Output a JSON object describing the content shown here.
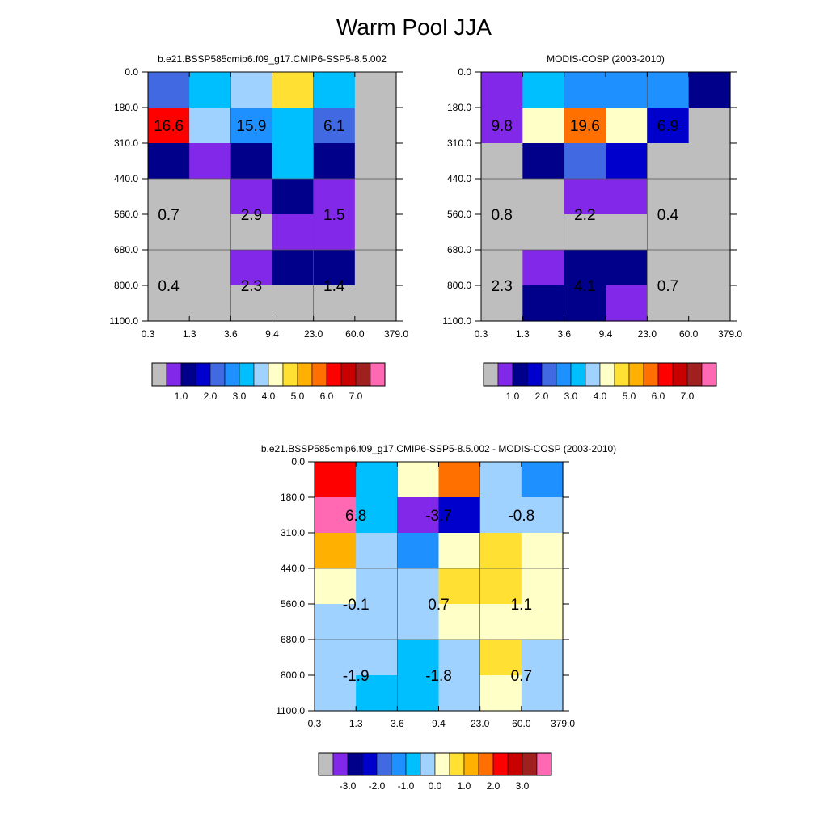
{
  "page": {
    "title": "Warm Pool JJA"
  },
  "chart_data": [
    {
      "type": "heatmap",
      "title": "b.e21.BSSP585cmip6.f09_g17.CMIP6-SSP5-8.5.002",
      "x_ticks": [
        "0.3",
        "1.3",
        "3.6",
        "9.4",
        "23.0",
        "60.0",
        "379.0"
      ],
      "y_ticks": [
        "0.0",
        "180.0",
        "310.0",
        "440.0",
        "560.0",
        "680.0",
        "800.0",
        "1100.0"
      ],
      "cells": [
        [
          4,
          6,
          7,
          9,
          6,
          0
        ],
        [
          12,
          7,
          5,
          6,
          4,
          0
        ],
        [
          2,
          1,
          2,
          6,
          2,
          0
        ],
        [
          0,
          0,
          1,
          2,
          1,
          0
        ],
        [
          0,
          0,
          0,
          1,
          1,
          0
        ],
        [
          0,
          0,
          1,
          2,
          2,
          0
        ],
        [
          0,
          0,
          0,
          0,
          0,
          0
        ]
      ],
      "labels": [
        {
          "text": "16.6",
          "col": 0.5,
          "row": 1.5
        },
        {
          "text": "15.9",
          "col": 2.5,
          "row": 1.5
        },
        {
          "text": "6.1",
          "col": 4.5,
          "row": 1.5
        },
        {
          "text": "0.7",
          "col": 0.5,
          "row": 4.0
        },
        {
          "text": "2.9",
          "col": 2.5,
          "row": 4.0
        },
        {
          "text": "1.5",
          "col": 4.5,
          "row": 4.0
        },
        {
          "text": "0.4",
          "col": 0.5,
          "row": 6.0
        },
        {
          "text": "2.3",
          "col": 2.5,
          "row": 6.0
        },
        {
          "text": "1.4",
          "col": 4.5,
          "row": 6.0
        }
      ],
      "colorbar": {
        "colors": [
          "#bebebe",
          "#8228e8",
          "#00008b",
          "#0000cd",
          "#4169e1",
          "#1e90ff",
          "#00bfff",
          "#a0d2ff",
          "#ffffc8",
          "#ffe033",
          "#ffb000",
          "#ff7000",
          "#ff0000",
          "#c80000",
          "#a02020",
          "#ff69b4"
        ],
        "tick_labels": [
          "1.0",
          "2.0",
          "3.0",
          "4.0",
          "5.0",
          "6.0",
          "7.0"
        ],
        "tick_after_box": [
          2,
          4,
          6,
          8,
          10,
          12,
          14
        ]
      }
    },
    {
      "type": "heatmap",
      "title": "MODIS-COSP (2003-2010)",
      "x_ticks": [
        "0.3",
        "1.3",
        "3.6",
        "9.4",
        "23.0",
        "60.0",
        "379.0"
      ],
      "y_ticks": [
        "0.0",
        "180.0",
        "310.0",
        "440.0",
        "560.0",
        "680.0",
        "800.0",
        "1100.0"
      ],
      "cells": [
        [
          1,
          6,
          5,
          5,
          5,
          2
        ],
        [
          1,
          8,
          11,
          8,
          3,
          0
        ],
        [
          0,
          2,
          4,
          3,
          0,
          0
        ],
        [
          0,
          0,
          1,
          1,
          0,
          0
        ],
        [
          0,
          0,
          0,
          0,
          0,
          0
        ],
        [
          0,
          1,
          2,
          2,
          0,
          0
        ],
        [
          0,
          2,
          2,
          1,
          0,
          0
        ]
      ],
      "labels": [
        {
          "text": "9.8",
          "col": 0.5,
          "row": 1.5
        },
        {
          "text": "19.6",
          "col": 2.5,
          "row": 1.5
        },
        {
          "text": "6.9",
          "col": 4.5,
          "row": 1.5
        },
        {
          "text": "0.8",
          "col": 0.5,
          "row": 4.0
        },
        {
          "text": "2.2",
          "col": 2.5,
          "row": 4.0
        },
        {
          "text": "0.4",
          "col": 4.5,
          "row": 4.0
        },
        {
          "text": "2.3",
          "col": 0.5,
          "row": 6.0
        },
        {
          "text": "4.1",
          "col": 2.5,
          "row": 6.0
        },
        {
          "text": "0.7",
          "col": 4.5,
          "row": 6.0
        }
      ],
      "colorbar": {
        "colors": [
          "#bebebe",
          "#8228e8",
          "#00008b",
          "#0000cd",
          "#4169e1",
          "#1e90ff",
          "#00bfff",
          "#a0d2ff",
          "#ffffc8",
          "#ffe033",
          "#ffb000",
          "#ff7000",
          "#ff0000",
          "#c80000",
          "#a02020",
          "#ff69b4"
        ],
        "tick_labels": [
          "1.0",
          "2.0",
          "3.0",
          "4.0",
          "5.0",
          "6.0",
          "7.0"
        ],
        "tick_after_box": [
          2,
          4,
          6,
          8,
          10,
          12,
          14
        ]
      }
    },
    {
      "type": "heatmap",
      "title": "b.e21.BSSP585cmip6.f09_g17.CMIP6-SSP5-8.5.002 - MODIS-COSP (2003-2010)",
      "x_ticks": [
        "0.3",
        "1.3",
        "3.6",
        "9.4",
        "23.0",
        "60.0",
        "379.0"
      ],
      "y_ticks": [
        "0.0",
        "180.0",
        "310.0",
        "440.0",
        "560.0",
        "680.0",
        "800.0",
        "1100.0"
      ],
      "cells": [
        [
          12,
          6,
          8,
          11,
          7,
          5
        ],
        [
          15,
          6,
          1,
          3,
          7,
          7
        ],
        [
          10,
          7,
          5,
          8,
          9,
          8
        ],
        [
          8,
          7,
          7,
          9,
          9,
          8
        ],
        [
          7,
          7,
          7,
          8,
          8,
          8
        ],
        [
          7,
          7,
          6,
          7,
          9,
          7
        ],
        [
          7,
          6,
          6,
          7,
          8,
          7
        ]
      ],
      "labels": [
        {
          "text": "6.8",
          "col": 1.0,
          "row": 1.5
        },
        {
          "text": "-3.7",
          "col": 3.0,
          "row": 1.5
        },
        {
          "text": "-0.8",
          "col": 5.0,
          "row": 1.5
        },
        {
          "text": "-0.1",
          "col": 1.0,
          "row": 4.0
        },
        {
          "text": "0.7",
          "col": 3.0,
          "row": 4.0
        },
        {
          "text": "1.1",
          "col": 5.0,
          "row": 4.0
        },
        {
          "text": "-1.9",
          "col": 1.0,
          "row": 6.0
        },
        {
          "text": "-1.8",
          "col": 3.0,
          "row": 6.0
        },
        {
          "text": "0.7",
          "col": 5.0,
          "row": 6.0
        }
      ],
      "colorbar": {
        "colors": [
          "#bebebe",
          "#8228e8",
          "#00008b",
          "#0000cd",
          "#4169e1",
          "#1e90ff",
          "#00bfff",
          "#a0d2ff",
          "#ffffc8",
          "#ffe033",
          "#ffb000",
          "#ff7000",
          "#ff0000",
          "#c80000",
          "#a02020",
          "#ff69b4"
        ],
        "tick_labels": [
          "-3.0",
          "-2.0",
          "-1.0",
          "0.0",
          "1.0",
          "2.0",
          "3.0"
        ],
        "tick_after_box": [
          2,
          4,
          6,
          8,
          10,
          12,
          14
        ]
      }
    }
  ]
}
